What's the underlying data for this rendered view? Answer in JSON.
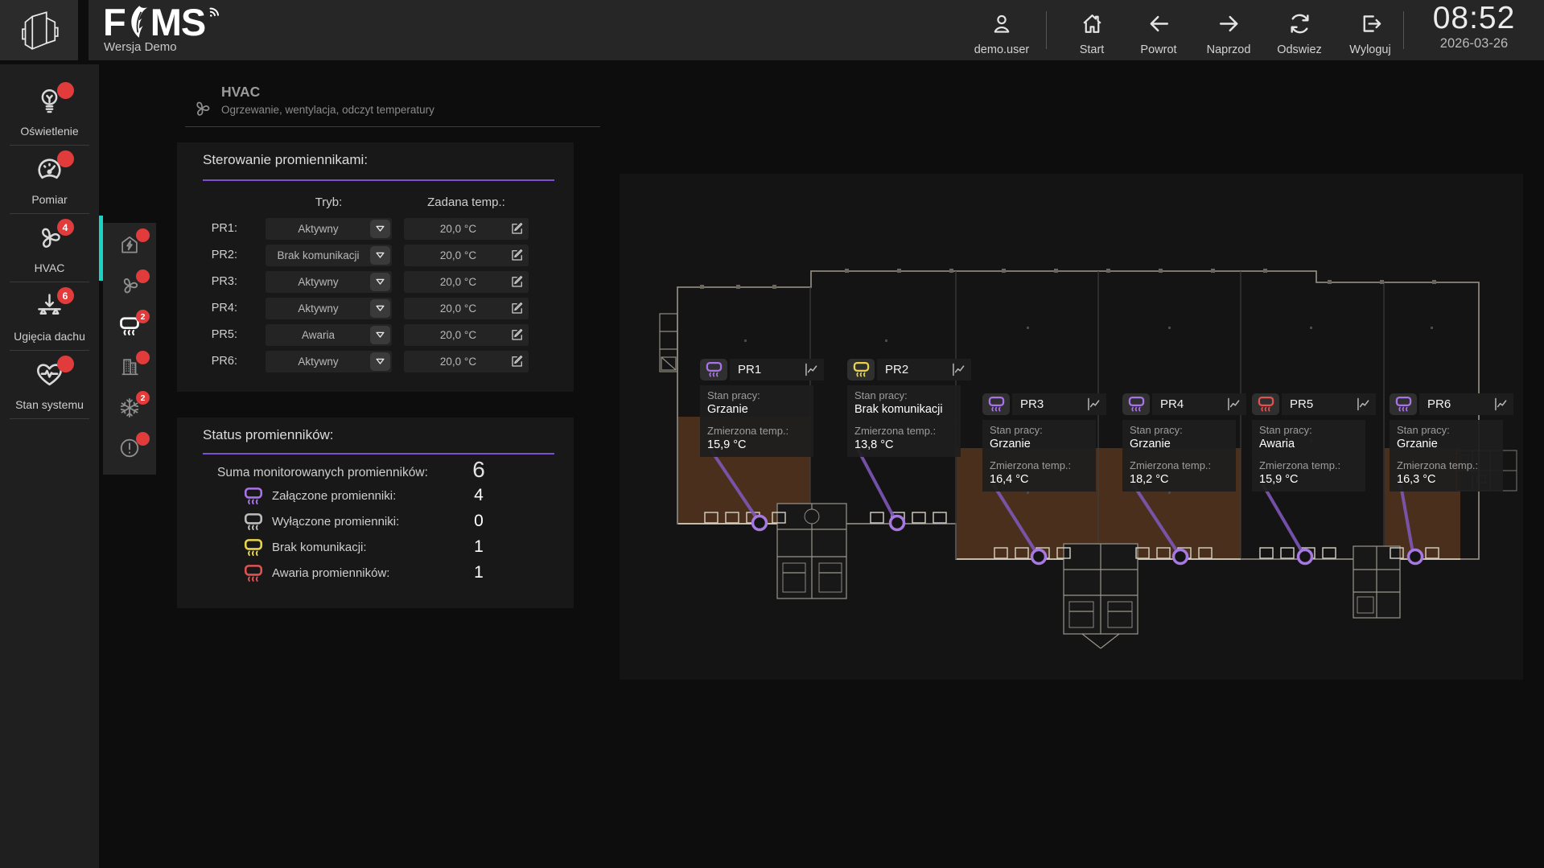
{
  "topbar": {
    "logo_title": "FOMS",
    "logo_part1": "F",
    "logo_part2": "MS",
    "logo_subtitle": "Wersja Demo",
    "user": {
      "label": "demo.user",
      "icon": "user-icon"
    },
    "nav": [
      {
        "label": "Start",
        "icon": "home-icon"
      },
      {
        "label": "Powrot",
        "icon": "arrow-left-icon"
      },
      {
        "label": "Naprzod",
        "icon": "arrow-right-icon"
      },
      {
        "label": "Odswiez",
        "icon": "refresh-icon"
      },
      {
        "label": "Wyloguj",
        "icon": "logout-icon"
      }
    ],
    "clock": {
      "time": "08:52",
      "date": "2026-03-26"
    }
  },
  "sidebar": {
    "items": [
      {
        "label": "Oświetlenie",
        "icon": "lightbulb-icon",
        "badge": null,
        "active": false
      },
      {
        "label": "Pomiar",
        "icon": "gauge-icon",
        "badge": null,
        "active": false
      },
      {
        "label": "HVAC",
        "icon": "fan-icon",
        "badge": "4",
        "active": true
      },
      {
        "label": "Ugięcia dachu",
        "icon": "roof-deflection-icon",
        "badge": "6",
        "active": false
      },
      {
        "label": "Stan systemu",
        "icon": "heart-pulse-icon",
        "badge": null,
        "active": false
      }
    ]
  },
  "subsidebar": {
    "items": [
      {
        "icon": "energy-home-icon",
        "badge": null,
        "active": false
      },
      {
        "icon": "fan-icon",
        "badge": null,
        "active": false
      },
      {
        "icon": "heater-icon",
        "badge": "2",
        "active": true
      },
      {
        "icon": "building-icon",
        "badge": null,
        "active": false
      },
      {
        "icon": "snowflake-icon",
        "badge": "2",
        "active": false
      },
      {
        "icon": "alert-icon",
        "badge": null,
        "active": false
      }
    ]
  },
  "page_header": {
    "title": "HVAC",
    "subtitle": "Ogrzewanie, wentylacja, odczyt temperatury",
    "icon": "fan-icon"
  },
  "control_panel": {
    "title": "Sterowanie promiennikami:",
    "col_mode": "Tryb:",
    "col_temp": "Zadana temp.:",
    "rows": [
      {
        "id": "PR1:",
        "mode": "Aktywny",
        "temp": "20,0 °C"
      },
      {
        "id": "PR2:",
        "mode": "Brak komunikacji",
        "temp": "20,0 °C"
      },
      {
        "id": "PR3:",
        "mode": "Aktywny",
        "temp": "20,0 °C"
      },
      {
        "id": "PR4:",
        "mode": "Aktywny",
        "temp": "20,0 °C"
      },
      {
        "id": "PR5:",
        "mode": "Awaria",
        "temp": "20,0 °C"
      },
      {
        "id": "PR6:",
        "mode": "Aktywny",
        "temp": "20,0 °C"
      }
    ]
  },
  "status_panel": {
    "title": "Status promienników:",
    "summary": {
      "label": "Suma monitorowanych promienników:",
      "value": "6"
    },
    "rows": [
      {
        "label": "Załączone promienniki:",
        "value": "4",
        "color": "#a873e8"
      },
      {
        "label": "Wyłączone promienniki:",
        "value": "0",
        "color": "#bdbdbd"
      },
      {
        "label": "Brak komunikacji:",
        "value": "1",
        "color": "#e8d44a"
      },
      {
        "label": "Awaria promienników:",
        "value": "1",
        "color": "#e05252"
      }
    ]
  },
  "map": {
    "state_label": "Stan pracy:",
    "temp_label": "Zmierzona temp.:",
    "devices": [
      {
        "name": "PR1",
        "state": "Grzanie",
        "temp": "15,9 °C",
        "color": "#a873e8"
      },
      {
        "name": "PR2",
        "state": "Brak komunikacji",
        "temp": "13,8 °C",
        "color": "#e8d44a"
      },
      {
        "name": "PR3",
        "state": "Grzanie",
        "temp": "16,4 °C",
        "color": "#a873e8"
      },
      {
        "name": "PR4",
        "state": "Grzanie",
        "temp": "18,2 °C",
        "color": "#a873e8"
      },
      {
        "name": "PR5",
        "state": "Awaria",
        "temp": "15,9 °C",
        "color": "#e05252"
      },
      {
        "name": "PR6",
        "state": "Grzanie",
        "temp": "16,3 °C",
        "color": "#a873e8"
      }
    ]
  },
  "colors": {
    "accent_purple": "#7a4fd0",
    "active_teal": "#19d3c5",
    "badge_red": "#e23b3b",
    "heating_zone_brown": "#8a5428"
  }
}
